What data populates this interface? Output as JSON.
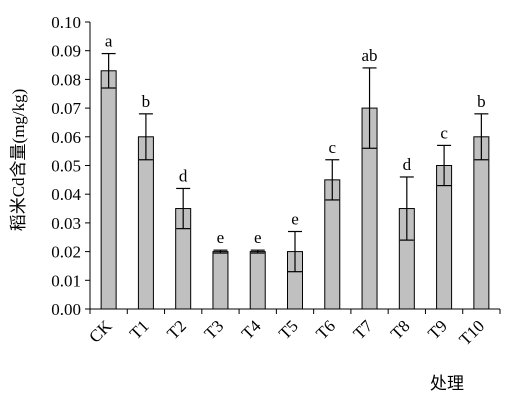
{
  "chart_data": {
    "type": "bar",
    "title": "",
    "xlabel": "处理",
    "ylabel": "稻米Cd含量(mg/kg)",
    "ylim": [
      0,
      0.1
    ],
    "yticks": [
      "0.00",
      "0.01",
      "0.02",
      "0.03",
      "0.04",
      "0.05",
      "0.06",
      "0.07",
      "0.08",
      "0.09",
      "0.10"
    ],
    "grid": false,
    "bar_color": "#c0c0c0",
    "categories": [
      "CK",
      "T1",
      "T2",
      "T3",
      "T4",
      "T5",
      "T6",
      "T7",
      "T8",
      "T9",
      "T10"
    ],
    "values": [
      0.083,
      0.06,
      0.035,
      0.02,
      0.02,
      0.02,
      0.045,
      0.07,
      0.035,
      0.05,
      0.06
    ],
    "error": [
      0.006,
      0.008,
      0.007,
      0.0005,
      0.0005,
      0.007,
      0.007,
      0.014,
      0.011,
      0.007,
      0.008
    ],
    "significance": [
      "a",
      "b",
      "d",
      "e",
      "e",
      "e",
      "c",
      "ab",
      "d",
      "c",
      "b"
    ]
  }
}
